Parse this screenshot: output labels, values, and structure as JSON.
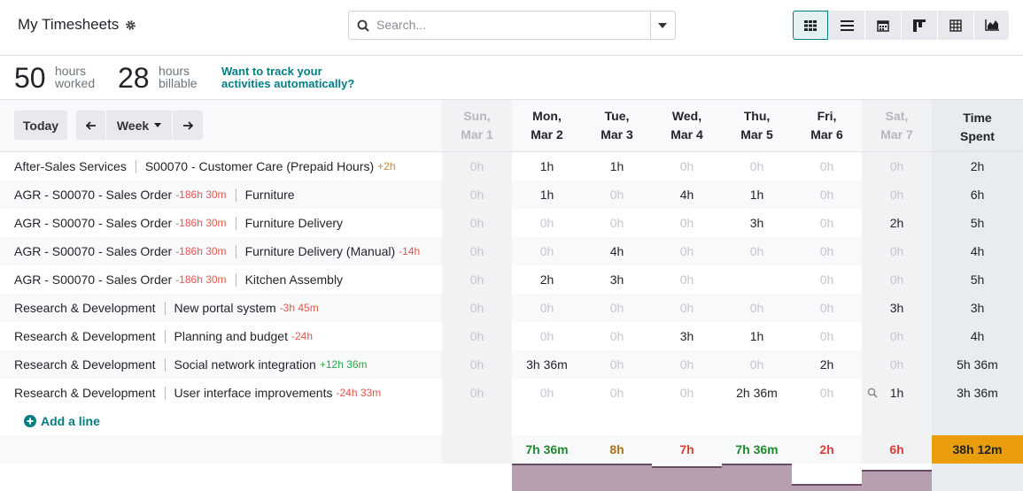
{
  "header": {
    "title": "My Timesheets",
    "search_placeholder": "Search..."
  },
  "stats": [
    {
      "value": 50,
      "unit": "hours",
      "label": "worked"
    },
    {
      "value": 28,
      "unit": "hours",
      "label": "billable"
    }
  ],
  "promo": "Want to track your activities automatically?",
  "toolbar": {
    "today": "Today",
    "period": "Week"
  },
  "columns": [
    {
      "day": "Sun,",
      "date": "Mar 1",
      "weekend": true
    },
    {
      "day": "Mon,",
      "date": "Mar 2",
      "weekend": false
    },
    {
      "day": "Tue,",
      "date": "Mar 3",
      "weekend": false
    },
    {
      "day": "Wed,",
      "date": "Mar 4",
      "weekend": false
    },
    {
      "day": "Thu,",
      "date": "Mar 5",
      "weekend": false
    },
    {
      "day": "Fri,",
      "date": "Mar 6",
      "weekend": false
    },
    {
      "day": "Sat,",
      "date": "Mar 7",
      "weekend": true
    }
  ],
  "total_header": "Time Spent",
  "rows": [
    {
      "project": "After-Sales Services",
      "project_remaining": null,
      "task": "S00070 - Customer Care (Prepaid Hours)",
      "task_remaining": "+2h",
      "task_remaining_color": "#c9873a",
      "cells": [
        "0h",
        "1h",
        "1h",
        "0h",
        "0h",
        "0h",
        "0h"
      ],
      "total": "2h"
    },
    {
      "project": "AGR - S00070 - Sales Order",
      "project_remaining": "-186h 30m",
      "task": "Furniture",
      "task_remaining": null,
      "task_remaining_color": null,
      "cells": [
        "0h",
        "1h",
        "0h",
        "4h",
        "1h",
        "0h",
        "0h"
      ],
      "total": "6h"
    },
    {
      "project": "AGR - S00070 - Sales Order",
      "project_remaining": "-186h 30m",
      "task": "Furniture Delivery",
      "task_remaining": null,
      "task_remaining_color": null,
      "cells": [
        "0h",
        "0h",
        "0h",
        "0h",
        "3h",
        "0h",
        "2h"
      ],
      "total": "5h"
    },
    {
      "project": "AGR - S00070 - Sales Order",
      "project_remaining": "-186h 30m",
      "task": "Furniture Delivery (Manual)",
      "task_remaining": "-14h",
      "task_remaining_color": "#e0584f",
      "cells": [
        "0h",
        "0h",
        "4h",
        "0h",
        "0h",
        "0h",
        "0h"
      ],
      "total": "4h"
    },
    {
      "project": "AGR - S00070 - Sales Order",
      "project_remaining": "-186h 30m",
      "task": "Kitchen Assembly",
      "task_remaining": null,
      "task_remaining_color": null,
      "cells": [
        "0h",
        "2h",
        "3h",
        "0h",
        null,
        "0h",
        "0h"
      ],
      "total": "5h"
    },
    {
      "project": "Research & Development",
      "project_remaining": null,
      "task": "New portal system",
      "task_remaining": "-3h 45m",
      "task_remaining_color": "#e0584f",
      "cells": [
        "0h",
        "0h",
        "0h",
        "0h",
        "0h",
        "0h",
        "3h"
      ],
      "total": "3h"
    },
    {
      "project": "Research & Development",
      "project_remaining": null,
      "task": "Planning and budget",
      "task_remaining": "-24h",
      "task_remaining_color": "#e0584f",
      "cells": [
        "0h",
        "0h",
        "0h",
        "3h",
        "1h",
        "0h",
        "0h"
      ],
      "total": "4h"
    },
    {
      "project": "Research & Development",
      "project_remaining": null,
      "task": "Social network integration",
      "task_remaining": "+12h 36m",
      "task_remaining_color": "#28a745",
      "cells": [
        "0h",
        "3h 36m",
        "0h",
        "0h",
        "0h",
        "2h",
        "0h"
      ],
      "total": "5h 36m"
    },
    {
      "project": "Research & Development",
      "project_remaining": null,
      "task": "User interface improvements",
      "task_remaining": "-24h 33m",
      "task_remaining_color": "#e0584f",
      "cells": [
        "0h",
        "0h",
        "0h",
        "0h",
        "2h 36m",
        "0h",
        "1h"
      ],
      "total": "3h 36m"
    }
  ],
  "add_line": "Add a line",
  "day_totals": [
    null,
    "7h 36m",
    "8h",
    "7h",
    "7h 36m",
    "2h",
    "6h"
  ],
  "day_total_colors": [
    null,
    "#1e8a2e",
    "#a9741a",
    "#d9403a",
    "#1e8a2e",
    "#d9403a",
    "#d9403a"
  ],
  "grand_total": "38h 12m"
}
